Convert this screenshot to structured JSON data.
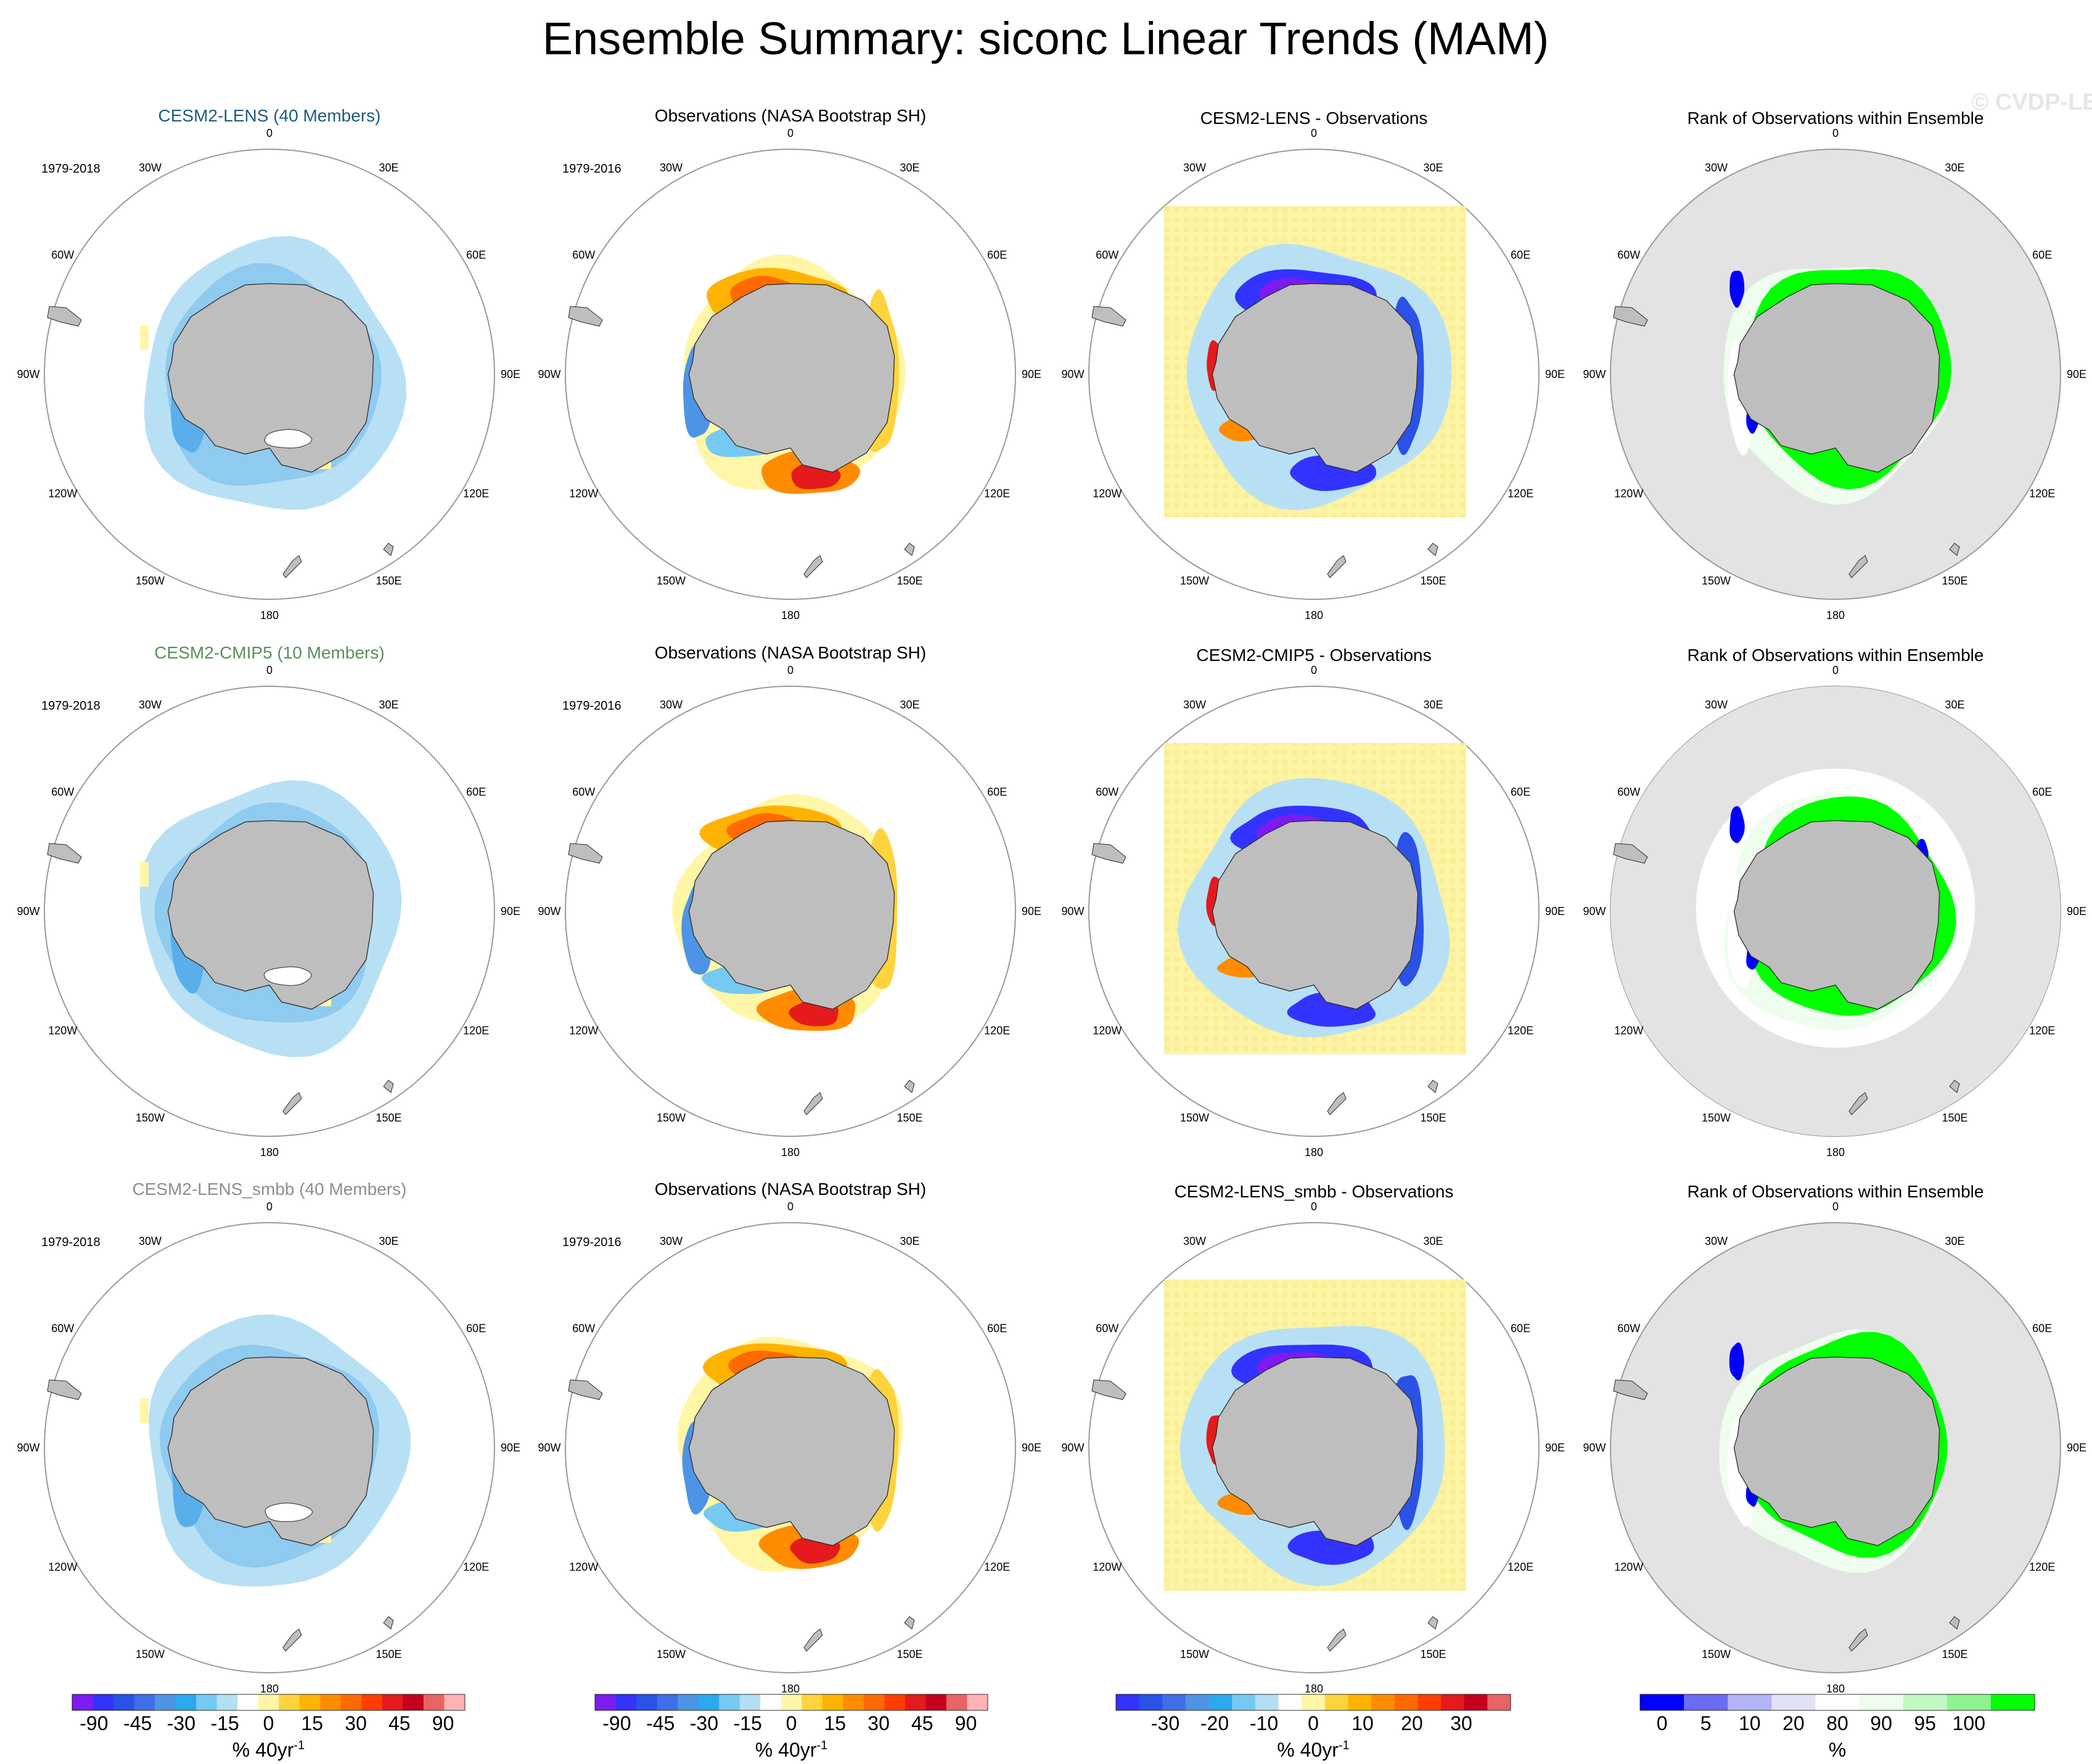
{
  "title": "Ensemble Summary: siconc Linear Trends (MAM)",
  "watermark": "© CVDP-LE",
  "colors": {
    "land": "#bebebe",
    "ocean_gray": "#e3e3e3",
    "circle": "#9a9a9a",
    "row_title": [
      "#1d5c7d",
      "#5b8f5b",
      "#8e8e8e"
    ],
    "map_yellow": "#fcf3a3",
    "trend_scale": [
      "#7d1bf0",
      "#3333ff",
      "#2a52e6",
      "#3f6fe8",
      "#4d94e6",
      "#2aa8f0",
      "#75c9f2",
      "#b3dff2",
      "#ffffff",
      "#fff6a8",
      "#ffd33d",
      "#ffb300",
      "#ff8c00",
      "#ff6a00",
      "#ff3d00",
      "#e41a1c",
      "#c4001e",
      "#e86464",
      "#ffb2b2"
    ],
    "rank_scale": [
      "#0000ff",
      "#6b6bf5",
      "#b3b3f7",
      "#e1e1f8",
      "#ffffff",
      "#eefdee",
      "#c2f8c2",
      "#8ff48f",
      "#00ff00"
    ]
  },
  "lon_labels": [
    "0",
    "30E",
    "60E",
    "90E",
    "120E",
    "150E",
    "180",
    "150W",
    "120W",
    "90W",
    "60W",
    "30W"
  ],
  "chart_data": [
    {
      "type": "heatmap",
      "title": "CESM2-LENS (40 Members)",
      "title_color": "#1d5c7d",
      "period": "1979-2018",
      "projection": "south-polar-stereographic",
      "field": "ensemble-mean siconc linear trend",
      "colorbar": "trend",
      "pattern": "model"
    },
    {
      "type": "heatmap",
      "title": "Observations (NASA Bootstrap SH)",
      "period": "1979-2016",
      "projection": "south-polar-stereographic",
      "field": "observed siconc linear trend",
      "colorbar": "trend",
      "pattern": "obs"
    },
    {
      "type": "heatmap",
      "title": "CESM2-LENS - Observations",
      "projection": "south-polar-stereographic",
      "field": "model minus observations",
      "colorbar": "diff",
      "pattern": "diff"
    },
    {
      "type": "heatmap",
      "title": "Rank of Observations within Ensemble",
      "projection": "south-polar-stereographic",
      "field": "rank percentile",
      "colorbar": "rank",
      "pattern": "rank"
    },
    {
      "type": "heatmap",
      "title": "CESM2-CMIP5 (10 Members)",
      "title_color": "#5b8f5b",
      "period": "1979-2018",
      "projection": "south-polar-stereographic",
      "field": "ensemble-mean siconc linear trend",
      "colorbar": "trend",
      "pattern": "model"
    },
    {
      "type": "heatmap",
      "title": "Observations (NASA Bootstrap SH)",
      "period": "1979-2016",
      "projection": "south-polar-stereographic",
      "field": "observed siconc linear trend",
      "colorbar": "trend",
      "pattern": "obs"
    },
    {
      "type": "heatmap",
      "title": "CESM2-CMIP5 - Observations",
      "projection": "south-polar-stereographic",
      "field": "model minus observations",
      "colorbar": "diff",
      "pattern": "diff"
    },
    {
      "type": "heatmap",
      "title": "Rank of Observations within Ensemble",
      "projection": "south-polar-stereographic",
      "field": "rank percentile",
      "colorbar": "rank",
      "pattern": "rank2"
    },
    {
      "type": "heatmap",
      "title": "CESM2-LENS_smbb (40 Members)",
      "title_color": "#8e8e8e",
      "period": "1979-2018",
      "projection": "south-polar-stereographic",
      "field": "ensemble-mean siconc linear trend",
      "colorbar": "trend",
      "pattern": "model"
    },
    {
      "type": "heatmap",
      "title": "Observations (NASA Bootstrap SH)",
      "period": "1979-2016",
      "projection": "south-polar-stereographic",
      "field": "observed siconc linear trend",
      "colorbar": "trend",
      "pattern": "obs"
    },
    {
      "type": "heatmap",
      "title": "CESM2-LENS_smbb - Observations",
      "projection": "south-polar-stereographic",
      "field": "model minus observations",
      "colorbar": "diff",
      "pattern": "diff"
    },
    {
      "type": "heatmap",
      "title": "Rank of Observations within Ensemble",
      "projection": "south-polar-stereographic",
      "field": "rank percentile",
      "colorbar": "rank",
      "pattern": "rank"
    }
  ],
  "colorbars": [
    {
      "name": "trend",
      "levels": [
        -90,
        -45,
        -30,
        -15,
        0,
        15,
        30,
        45,
        90
      ],
      "labels": [
        "-90",
        "-45",
        "-30",
        "-15",
        "0",
        "15",
        "30",
        "45",
        "90"
      ],
      "unit": "% 40yr",
      "unit_exp": "-1"
    },
    {
      "name": "trend",
      "levels": [
        -90,
        -45,
        -30,
        -15,
        0,
        15,
        30,
        45,
        90
      ],
      "labels": [
        "-90",
        "-45",
        "-30",
        "-15",
        "0",
        "15",
        "30",
        "45",
        "90"
      ],
      "unit": "% 40yr",
      "unit_exp": "-1"
    },
    {
      "name": "diff",
      "levels": [
        -30,
        -20,
        -10,
        0,
        10,
        20,
        30
      ],
      "labels": [
        "-30",
        "-20",
        "-10",
        "0",
        "10",
        "20",
        "30"
      ],
      "unit": "% 40yr",
      "unit_exp": "-1"
    },
    {
      "name": "rank",
      "levels": [
        0,
        5,
        10,
        20,
        80,
        90,
        95,
        100
      ],
      "labels": [
        "0",
        "5",
        "10",
        "20",
        "80",
        "90",
        "95",
        "100"
      ],
      "unit": "%",
      "unit_exp": ""
    }
  ]
}
